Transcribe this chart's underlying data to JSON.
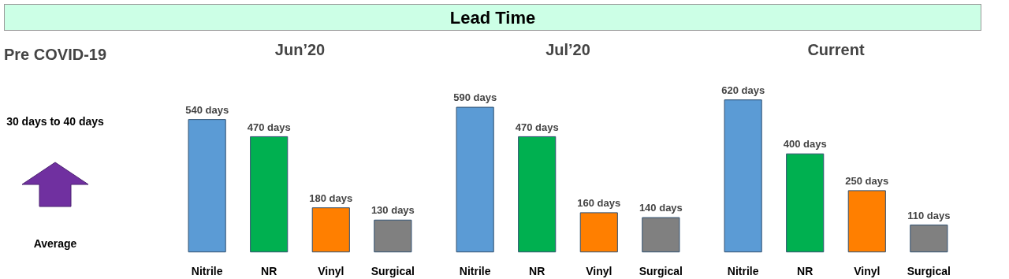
{
  "chart_data": [
    {
      "type": "other",
      "title": "Lead Time"
    },
    {
      "type": "other",
      "title": "Pre COVID-19",
      "annotations": [
        "30 days to 40 days",
        "Average"
      ]
    },
    {
      "type": "bar",
      "title": "Jun’20",
      "categories": [
        "Nitrile",
        "NR",
        "Vinyl",
        "Surgical"
      ],
      "values": [
        540,
        470,
        180,
        130
      ],
      "colors": [
        "#5b9bd5",
        "#00b050",
        "#ff7f00",
        "#808080"
      ],
      "value_labels": [
        "540 days",
        "470 days",
        "180 days",
        "130 days"
      ],
      "tick_labels": "x"
    },
    {
      "type": "bar",
      "title": "Jul’20",
      "categories": [
        "Nitrile",
        "NR",
        "Vinyl",
        "Surgical"
      ],
      "values": [
        590,
        470,
        160,
        140
      ],
      "colors": [
        "#5b9bd5",
        "#00b050",
        "#ff7f00",
        "#808080"
      ],
      "value_labels": [
        "590 days",
        "470 days",
        "160 days",
        "140 days"
      ],
      "tick_labels": "x"
    },
    {
      "type": "bar",
      "title": "Current",
      "categories": [
        "Nitrile",
        "NR",
        "Vinyl",
        "Surgical"
      ],
      "values": [
        620,
        400,
        250,
        110
      ],
      "colors": [
        "#5b9bd5",
        "#00b050",
        "#ff7f00",
        "#808080"
      ],
      "value_labels": [
        "620 days",
        "400 days",
        "250 days",
        "110 days"
      ],
      "tick_labels": "x"
    }
  ]
}
